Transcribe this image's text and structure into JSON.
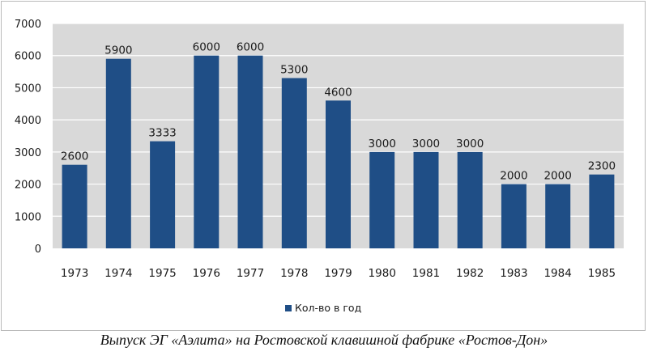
{
  "chart_data": {
    "type": "bar",
    "categories": [
      "1973",
      "1974",
      "1975",
      "1976",
      "1977",
      "1978",
      "1979",
      "1980",
      "1981",
      "1982",
      "1983",
      "1984",
      "1985"
    ],
    "series": [
      {
        "name": "Кол-во в год",
        "values": [
          2600,
          5900,
          3333,
          6000,
          6000,
          5300,
          4600,
          3000,
          3000,
          3000,
          2000,
          2000,
          2300
        ]
      }
    ],
    "data_labels": [
      "2600",
      "5900",
      "3333",
      "6000",
      "6000",
      "5300",
      "4600",
      "3000",
      "3000",
      "3000",
      "2000",
      "2000",
      "2300"
    ],
    "ylim": [
      0,
      7000
    ],
    "yticks": [
      0,
      1000,
      2000,
      3000,
      4000,
      5000,
      6000,
      7000
    ],
    "grid": true,
    "legend_position": "bottom",
    "bar_color": "#1f4e86",
    "plot_background": "#d9d9d9",
    "gridline_color": "#ffffff"
  },
  "caption": "Выпуск ЭГ «Аэлита» на Ростовской клавишной фабрике «Ростов-Дон»"
}
